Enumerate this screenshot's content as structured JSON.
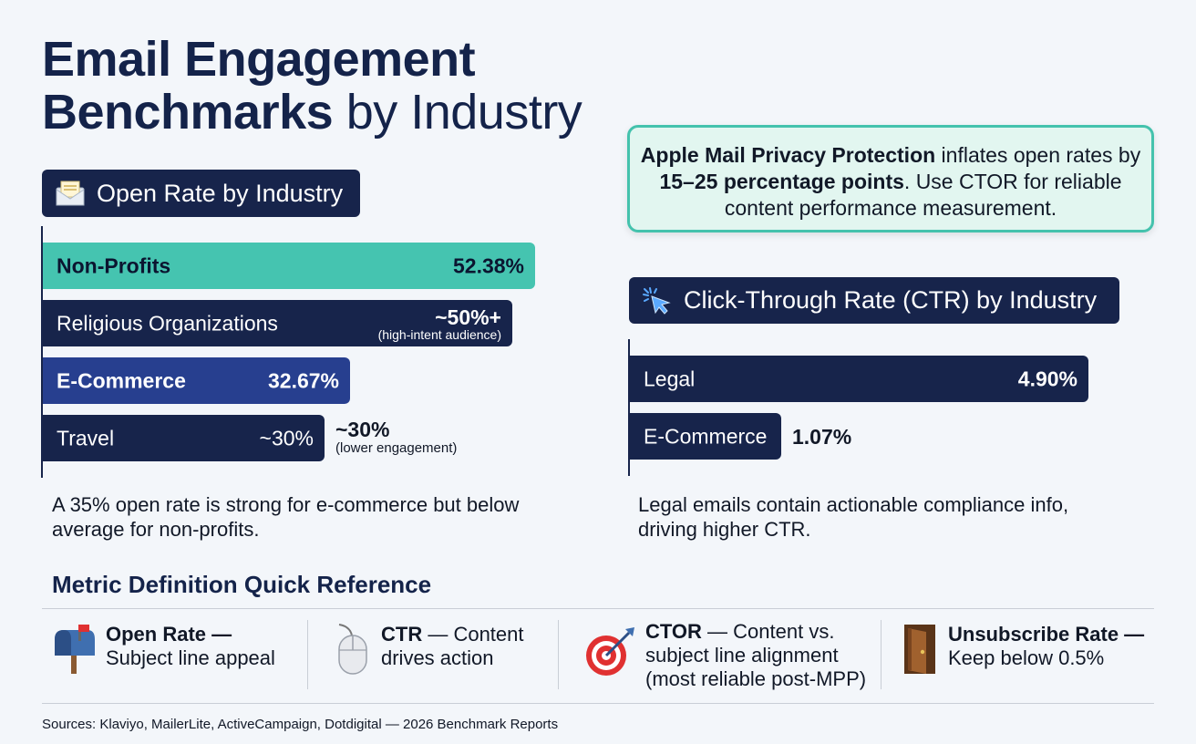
{
  "title": {
    "bold": "Email Engagement Benchmarks",
    "light": "by Industry",
    "line1": "Email Engagement",
    "line2_bold": "Benchmarks"
  },
  "open_rate": {
    "heading": "Open Rate by Industry",
    "note": "A 35% open rate is strong for e-commerce but below average for non-profits."
  },
  "callout": {
    "part1_bold": "Apple Mail Privacy Protection",
    "part2": " inflates open rates by ",
    "part3_bold": "15–25 percentage points",
    "part4": ". Use CTOR for reliable content performance measurement."
  },
  "ctr": {
    "heading": "Click-Through Rate (CTR) by Industry",
    "note": "Legal emails contain actionable compliance info, driving higher CTR."
  },
  "quick_reference": {
    "title": "Metric Definition Quick Reference",
    "items": [
      {
        "name": "Open Rate",
        "dash": " —",
        "desc": "Subject line appeal",
        "icon": "mailbox-icon"
      },
      {
        "name": "CTR",
        "dash": " — Content",
        "desc": "drives action",
        "icon": "mouse-icon"
      },
      {
        "name": "CTOR",
        "dash": " — Content vs.",
        "desc": "subject line alignment (most reliable post-MPP)",
        "icon": "target-icon"
      },
      {
        "name": "Unsubscribe Rate",
        "dash": " —",
        "desc": "Keep below 0.5%",
        "icon": "door-icon"
      }
    ]
  },
  "sources": "Sources: Klaviyo, MailerLite, ActiveCampaign, Dotdigital — 2026 Benchmark Reports",
  "chart_data": [
    {
      "type": "bar",
      "orientation": "horizontal",
      "title": "Open Rate by Industry",
      "categories": [
        "Non-Profits",
        "Religious Organizations",
        "E-Commerce",
        "Travel"
      ],
      "values": [
        52.38,
        50,
        32.67,
        30
      ],
      "value_labels": [
        "52.38%",
        "~50%+",
        "32.67%",
        "~30%"
      ],
      "annotations": [
        "",
        "(high-intent audience)",
        "",
        "~30% (lower engagement)"
      ],
      "annotation_main": [
        "",
        "",
        "",
        "~30%"
      ],
      "annotation_sub": [
        "",
        "(high-intent audience)",
        "",
        "(lower engagement)"
      ],
      "colors": [
        "#45c4b0",
        "#17244b",
        "#273f8f",
        "#17244b"
      ],
      "label_colors": [
        "#0b1530",
        "#ffffff",
        "#ffffff",
        "#ffffff"
      ],
      "unit": "%"
    },
    {
      "type": "bar",
      "orientation": "horizontal",
      "title": "Click-Through Rate (CTR) by Industry",
      "categories": [
        "Legal",
        "E-Commerce"
      ],
      "values": [
        4.9,
        1.07
      ],
      "value_labels": [
        "4.90%",
        "1.07%"
      ],
      "colors": [
        "#17244b",
        "#17244b"
      ],
      "unit": "%"
    }
  ]
}
